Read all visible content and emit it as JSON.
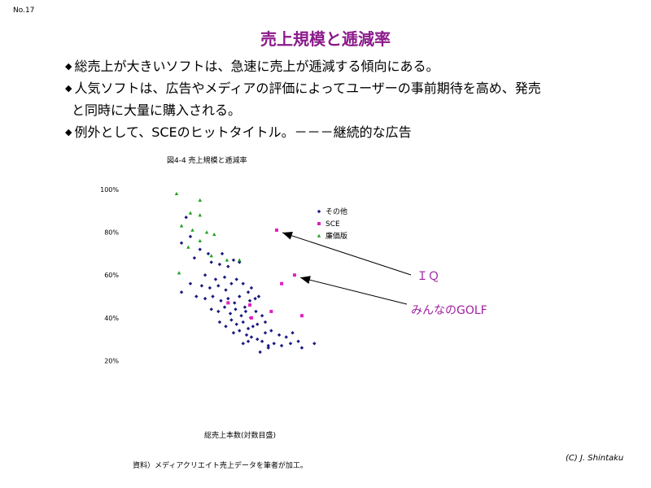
{
  "slide_number": "No.17",
  "title": "売上規模と逓減率",
  "bullets": [
    {
      "mark": "◆",
      "lines": [
        "総売上が大きいソフトは、急速に売上が逓減する傾向にある。"
      ]
    },
    {
      "mark": "◆",
      "lines": [
        "人気ソフトは、広告やメディアの評価によってユーザーの事前期待を高め、発売",
        "と同時に大量に購入される。"
      ]
    },
    {
      "mark": "◆",
      "lines": [
        "例外として、SCEのヒットタイトル。－－－継続的な広告"
      ]
    }
  ],
  "credit": "(C)  J. Shintaku",
  "source_note": "資料）メディアクリエイト売上データを筆者が加工。",
  "colors": {
    "title": "#8b1a8b",
    "other": "#1a1a80",
    "sce": "#e020c0",
    "budget": "#20a020",
    "annotation_text": "#a020a0"
  },
  "chart_data": {
    "type": "scatter",
    "title": "図4-4  売上規模と逓減率",
    "xlabel": "総売上本数(対数目盛)",
    "ylabel": "",
    "x_scale": "log",
    "ylim": [
      0.15,
      1.05
    ],
    "yticks": [
      {
        "value": 1.0,
        "label": "100%"
      },
      {
        "value": 0.8,
        "label": "80%"
      },
      {
        "value": 0.6,
        "label": "60%"
      },
      {
        "value": 0.4,
        "label": "40%"
      },
      {
        "value": 0.2,
        "label": "20%"
      }
    ],
    "legend": [
      {
        "key": "other",
        "label": "その他",
        "marker": "diamond"
      },
      {
        "key": "sce",
        "label": "SCE",
        "marker": "square"
      },
      {
        "key": "budget",
        "label": "廉価版",
        "marker": "triangle"
      }
    ],
    "legend_position": "top-right",
    "series": [
      {
        "key": "other",
        "name": "その他",
        "marker": "diamond",
        "points": [
          [
            0.28,
            0.87
          ],
          [
            0.3,
            0.78
          ],
          [
            0.26,
            0.75
          ],
          [
            0.35,
            0.72
          ],
          [
            0.32,
            0.68
          ],
          [
            0.4,
            0.7
          ],
          [
            0.5,
            0.7
          ],
          [
            0.42,
            0.66
          ],
          [
            0.48,
            0.65
          ],
          [
            0.55,
            0.64
          ],
          [
            0.6,
            0.67
          ],
          [
            0.66,
            0.66
          ],
          [
            0.38,
            0.6
          ],
          [
            0.45,
            0.58
          ],
          [
            0.52,
            0.59
          ],
          [
            0.3,
            0.56
          ],
          [
            0.36,
            0.55
          ],
          [
            0.41,
            0.54
          ],
          [
            0.47,
            0.55
          ],
          [
            0.53,
            0.53
          ],
          [
            0.58,
            0.56
          ],
          [
            0.63,
            0.58
          ],
          [
            0.7,
            0.56
          ],
          [
            0.76,
            0.52
          ],
          [
            0.8,
            0.54
          ],
          [
            0.26,
            0.52
          ],
          [
            0.33,
            0.5
          ],
          [
            0.38,
            0.49
          ],
          [
            0.43,
            0.5
          ],
          [
            0.49,
            0.48
          ],
          [
            0.55,
            0.49
          ],
          [
            0.61,
            0.47
          ],
          [
            0.66,
            0.5
          ],
          [
            0.72,
            0.45
          ],
          [
            0.78,
            0.48
          ],
          [
            0.85,
            0.49
          ],
          [
            0.9,
            0.5
          ],
          [
            0.42,
            0.44
          ],
          [
            0.47,
            0.43
          ],
          [
            0.52,
            0.45
          ],
          [
            0.57,
            0.42
          ],
          [
            0.62,
            0.44
          ],
          [
            0.68,
            0.41
          ],
          [
            0.73,
            0.43
          ],
          [
            0.79,
            0.4
          ],
          [
            0.86,
            0.43
          ],
          [
            0.95,
            0.41
          ],
          [
            0.48,
            0.38
          ],
          [
            0.53,
            0.36
          ],
          [
            0.58,
            0.39
          ],
          [
            0.63,
            0.37
          ],
          [
            0.7,
            0.38
          ],
          [
            0.76,
            0.35
          ],
          [
            0.82,
            0.36
          ],
          [
            0.88,
            0.37
          ],
          [
            1.0,
            0.38
          ],
          [
            0.6,
            0.33
          ],
          [
            0.66,
            0.34
          ],
          [
            0.74,
            0.32
          ],
          [
            0.8,
            0.31
          ],
          [
            0.88,
            0.3
          ],
          [
            1.0,
            0.33
          ],
          [
            1.1,
            0.34
          ],
          [
            1.25,
            0.32
          ],
          [
            1.4,
            0.31
          ],
          [
            1.55,
            0.33
          ],
          [
            1.7,
            0.29
          ],
          [
            0.95,
            0.29
          ],
          [
            1.05,
            0.27
          ],
          [
            1.15,
            0.28
          ],
          [
            1.3,
            0.27
          ],
          [
            1.5,
            0.28
          ],
          [
            1.8,
            0.26
          ],
          [
            2.2,
            0.28
          ],
          [
            0.92,
            0.24
          ],
          [
            1.05,
            0.26
          ],
          [
            0.7,
            0.28
          ],
          [
            0.76,
            0.29
          ]
        ]
      },
      {
        "key": "sce",
        "name": "SCE",
        "marker": "square",
        "points": [
          [
            1.2,
            0.81
          ],
          [
            1.6,
            0.6
          ],
          [
            1.3,
            0.56
          ],
          [
            0.55,
            0.47
          ],
          [
            0.78,
            0.46
          ],
          [
            1.1,
            0.43
          ],
          [
            1.8,
            0.41
          ],
          [
            0.8,
            0.4
          ]
        ]
      },
      {
        "key": "budget",
        "name": "廉価版",
        "marker": "triangle",
        "points": [
          [
            0.24,
            0.98
          ],
          [
            0.35,
            0.95
          ],
          [
            0.3,
            0.89
          ],
          [
            0.35,
            0.88
          ],
          [
            0.26,
            0.83
          ],
          [
            0.31,
            0.81
          ],
          [
            0.39,
            0.8
          ],
          [
            0.44,
            0.79
          ],
          [
            0.35,
            0.76
          ],
          [
            0.29,
            0.73
          ],
          [
            0.42,
            0.69
          ],
          [
            0.54,
            0.67
          ],
          [
            0.66,
            0.67
          ],
          [
            0.25,
            0.61
          ]
        ]
      }
    ],
    "annotations": [
      {
        "text": "ＩＱ",
        "points_to": [
          1.2,
          0.81
        ]
      },
      {
        "text": "みんなのGOLF",
        "points_to": [
          1.6,
          0.6
        ]
      }
    ]
  }
}
